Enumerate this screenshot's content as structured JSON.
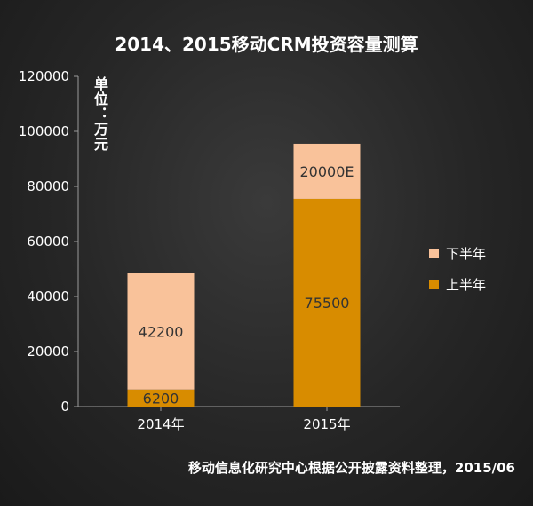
{
  "title": "2014、2015移动CRM投资容量测算",
  "unit_label": "单位：万元",
  "source_note": "移动信息化研究中心根据公开披露资料整理，2015/06",
  "colors": {
    "lower_half": "#d88c00",
    "upper_half": "#f9c29a",
    "axis": "#9a9a9a",
    "text": "#ffffff",
    "bar_label": "#333333"
  },
  "chart_data": {
    "type": "bar",
    "stacked": true,
    "categories": [
      "2014年",
      "2015年"
    ],
    "series": [
      {
        "name": "上半年",
        "values": [
          6200,
          75500
        ],
        "labels": [
          "6200",
          "75500"
        ],
        "color": "#d88c00"
      },
      {
        "name": "下半年",
        "values": [
          42200,
          20000
        ],
        "labels": [
          "42200",
          "20000E"
        ],
        "color": "#f9c29a"
      }
    ],
    "yticks": [
      "0",
      "20000",
      "40000",
      "60000",
      "80000",
      "100000",
      "120000"
    ],
    "ylim": [
      0,
      120000
    ],
    "grid": false,
    "legend": {
      "position": "right",
      "order": [
        "下半年",
        "上半年"
      ]
    }
  }
}
